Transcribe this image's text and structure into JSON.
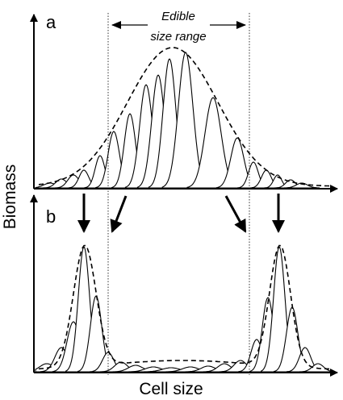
{
  "figure": {
    "panel_a_label": "a",
    "panel_b_label": "b",
    "edible_range_line1": "Edible",
    "edible_range_line2": "size range",
    "y_axis_label": "Biomass",
    "x_axis_label": "Cell size"
  },
  "colors": {
    "line": "#000000",
    "background": "#ffffff",
    "dotted_fill": "#bdbdbd"
  }
}
